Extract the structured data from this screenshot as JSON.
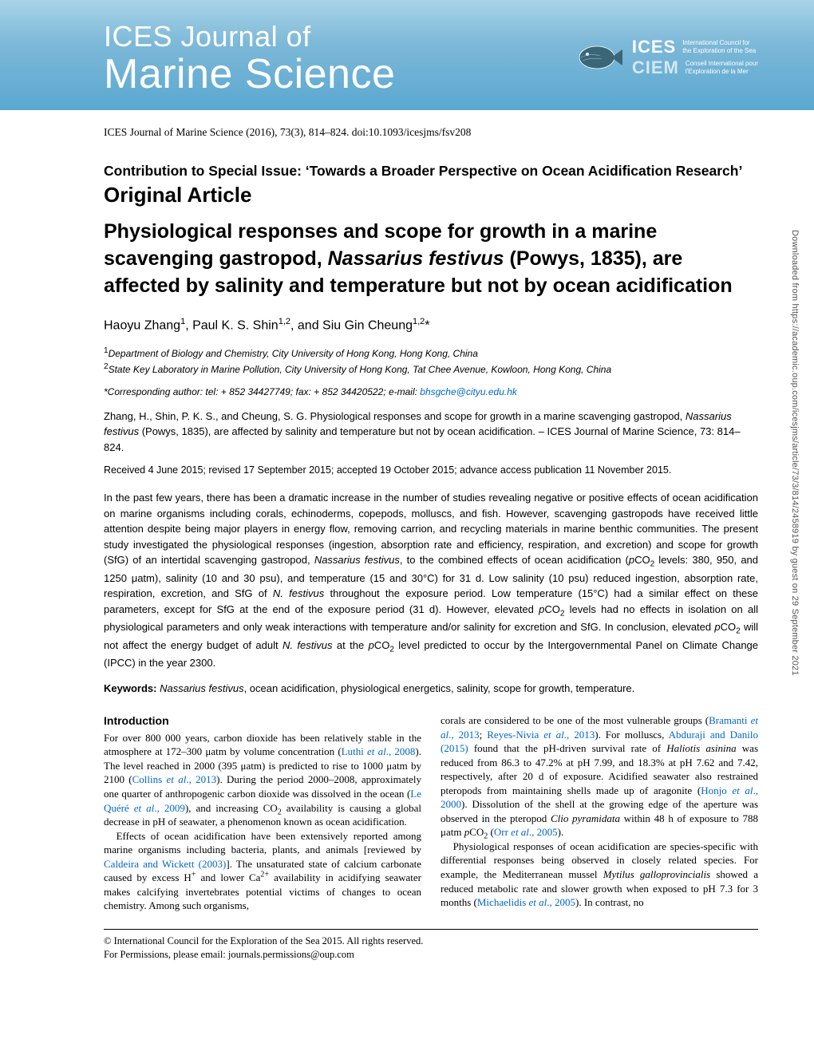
{
  "banner": {
    "journal_line1": "ICES Journal of",
    "journal_line2": "Marine Science",
    "logo": {
      "abbr1": "ICES",
      "desc1a": "International Council for",
      "desc1b": "the Exploration of the Sea",
      "abbr2": "CIEM",
      "desc2a": "Conseil International pour",
      "desc2b": "l'Exploration de la Mer"
    },
    "colors": {
      "grad_top": "#a8d4e8",
      "grad_mid": "#7db8d8",
      "grad_bot": "#5aa8d0"
    }
  },
  "citation": "ICES Journal of Marine Science (2016), 73(3), 814–824. doi:10.1093/icesjms/fsv208",
  "contribution": "Contribution to Special Issue: ‘Towards a Broader Perspective on Ocean Acidification Research’",
  "article_type": "Original Article",
  "title": {
    "pre": "Physiological responses and scope for growth in a marine scavenging gastropod, ",
    "species": "Nassarius festivus",
    "post": " (Powys, 1835), are affected by salinity and temperature but not by ocean acidification"
  },
  "authors_html": "Haoyu Zhang<sup>1</sup>, Paul K. S. Shin<sup>1,2</sup>, and Siu Gin Cheung<sup>1,2</sup>*",
  "affiliations": {
    "a1": "Department of Biology and Chemistry, City University of Hong Kong, Hong Kong, China",
    "a2": "State Key Laboratory in Marine Pollution, City University of Hong Kong, Tat Chee Avenue, Kowloon, Hong Kong, China"
  },
  "corresponding": {
    "text": "*Corresponding author: tel: + 852 34427749; fax: + 852 34420522; e-mail: ",
    "email": "bhsgche@cityu.edu.hk"
  },
  "self_cite": "Zhang, H., Shin, P. K. S., and Cheung, S. G. Physiological responses and scope for growth in a marine scavenging gastropod, <span class=\"species\">Nassarius festivus</span> (Powys, 1835), are affected by salinity and temperature but not by ocean acidification. – ICES Journal of Marine Science, 73: 814–824.",
  "dates": "Received 4 June 2015; revised 17 September 2015; accepted 19 October 2015; advance access publication 11 November 2015.",
  "abstract": "In the past few years, there has been a dramatic increase in the number of studies revealing negative or positive effects of ocean acidification on marine organisms including corals, echinoderms, copepods, molluscs, and fish. However, scavenging gastropods have received little attention despite being major players in energy flow, removing carrion, and recycling materials in marine benthic communities. The present study investigated the physiological responses (ingestion, absorption rate and efficiency, respiration, and excretion) and scope for growth (SfG) of an intertidal scavenging gastropod, <span class=\"species\">Nassarius festivus</span>, to the combined effects of ocean acidification (<span class=\"species\">p</span>CO<sub>2</sub> levels: 380, 950, and 1250 μatm), salinity (10 and 30 psu), and temperature (15 and 30°C) for 31 d. Low salinity (10 psu) reduced ingestion, absorption rate, respiration, excretion, and SfG of <span class=\"species\">N. festivus</span> throughout the exposure period. Low temperature (15°C) had a similar effect on these parameters, except for SfG at the end of the exposure period (31 d). However, elevated <span class=\"species\">p</span>CO<sub>2</sub> levels had no effects in isolation on all physiological parameters and only weak interactions with temperature and/or salinity for excretion and SfG. In conclusion, elevated <span class=\"species\">p</span>CO<sub>2</sub> will not affect the energy budget of adult <span class=\"species\">N. festivus</span> at the <span class=\"species\">p</span>CO<sub>2</sub> level predicted to occur by the Intergovernmental Panel on Climate Change (IPCC) in the year 2300.",
  "keywords": {
    "label": "Keywords:",
    "text": " <span class=\"species\">Nassarius festivus</span>, ocean acidification, physiological energetics, salinity, scope for growth, temperature."
  },
  "intro_heading": "Introduction",
  "col_left": {
    "p1": "For over 800 000 years, carbon dioxide has been relatively stable in the atmosphere at 172–300 μatm by volume concentration (<span class=\"ref\">Luthi <span class=\"species\">et al</span>., 2008</span>). The level reached in 2000 (395 μatm) is predicted to rise to 1000 μatm by 2100 (<span class=\"ref\">Collins <span class=\"species\">et al</span>., 2013</span>). During the period 2000–2008, approximately one quarter of anthropogenic carbon dioxide was dissolved in the ocean (<span class=\"ref\">Le Quéré <span class=\"species\">et al</span>., 2009</span>), and increasing CO<sub>2</sub> availability is causing a global decrease in pH of seawater, a phenomenon known as ocean acidification.",
    "p2": "Effects of ocean acidification have been extensively reported among marine organisms including bacteria, plants, and animals [reviewed by <span class=\"ref\">Caldeira and Wickett (2003)</span>]. The unsaturated state of calcium carbonate caused by excess H<sup>+</sup> and lower Ca<sup>2+</sup> availability in acidifying seawater makes calcifying invertebrates potential victims of changes to ocean chemistry. Among such organisms,"
  },
  "col_right": {
    "p1": "corals are considered to be one of the most vulnerable groups (<span class=\"ref\">Bramanti <span class=\"species\">et al</span>., 2013</span>; <span class=\"ref\">Reyes-Nivia <span class=\"species\">et al</span>., 2013</span>). For molluscs, <span class=\"ref\">Abduraji and Danilo (2015)</span> found that the pH-driven survival rate of <span class=\"species\">Haliotis asinina</span> was reduced from 86.3 to 47.2% at pH 7.99, and 18.3% at pH 7.62 and 7.42, respectively, after 20 d of exposure. Acidified seawater also restrained pteropods from maintaining shells made up of aragonite (<span class=\"ref\">Honjo <span class=\"species\">et al</span>., 2000</span>). Dissolution of the shell at the growing edge of the aperture was observed in the pteropod <span class=\"species\">Clio pyramidata</span> within 48 h of exposure to 788 μatm <span class=\"species\">p</span>CO<sub>2</sub> (<span class=\"ref\">Orr <span class=\"species\">et al</span>., 2005</span>).",
    "p2": "Physiological responses of ocean acidification are species-specific with differential responses being observed in closely related species. For example, the Mediterranean mussel <span class=\"species\">Mytilus galloprovincialis</span> showed a reduced metabolic rate and slower growth when exposed to pH 7.3 for 3 months (<span class=\"ref\">Michaelidis <span class=\"species\">et al</span>., 2005</span>). In contrast, no"
  },
  "copyright": {
    "l1": "© International Council for the Exploration of the Sea 2015. All rights reserved.",
    "l2": "For Permissions, please email: journals.permissions@oup.com"
  },
  "sidebar": "Downloaded from https://academic.oup.com/icesjms/article/73/3/814/2458919 by guest on 29 September 2021",
  "link_color": "#0066cc"
}
